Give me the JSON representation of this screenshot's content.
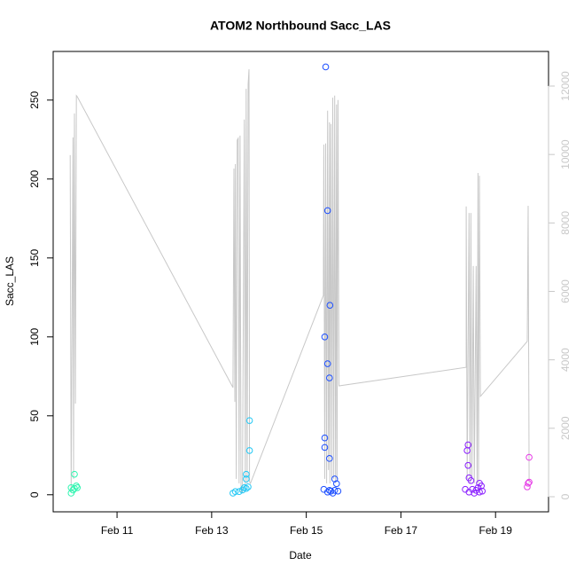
{
  "chart_data": {
    "type": "scatter",
    "title": "ATOM2 Northbound Sacc_LAS",
    "x_label": "Date",
    "y_label": "Sacc_LAS",
    "xlim": [
      9.65,
      20.12
    ],
    "xticks": [
      {
        "value": 11,
        "label": "Feb 11"
      },
      {
        "value": 13,
        "label": "Feb 13"
      },
      {
        "value": 15,
        "label": "Feb 15"
      },
      {
        "value": 17,
        "label": "Feb 17"
      },
      {
        "value": 19,
        "label": "Feb 19"
      }
    ],
    "ylim": [
      -10.8,
      280.8
    ],
    "yticks": [
      0,
      50,
      100,
      150,
      200,
      250
    ],
    "y2lim": [
      -441,
      13011
    ],
    "y2ticks": [
      0,
      2000,
      4000,
      6000,
      8000,
      10000,
      12000
    ],
    "y2_color": "#c8c8c8",
    "series": [
      {
        "color": "#2ef5b0",
        "x": [
          10.1,
          10.03,
          10.07,
          10.14,
          10.1,
          10.03,
          10.16
        ],
        "values": [
          13,
          4.5,
          3,
          5.6,
          4,
          1,
          4.5
        ]
      },
      {
        "color": "#22c8f5",
        "x": [
          13.45,
          13.5,
          13.58,
          13.65,
          13.69,
          13.73,
          13.77,
          13.73,
          13.73,
          13.8,
          13.8
        ],
        "values": [
          1,
          2,
          2,
          3,
          4.5,
          4,
          5,
          13,
          10,
          47,
          28
        ]
      },
      {
        "color": "#1e50ff",
        "x": [
          15.41,
          15.45,
          15.5,
          15.39,
          15.45,
          15.49,
          15.39,
          15.39,
          15.49,
          15.6,
          15.64,
          15.37,
          15.45,
          15.52,
          15.6,
          15.67,
          15.56,
          15.49
        ],
        "values": [
          271,
          180,
          120,
          100,
          83,
          74,
          36,
          30,
          23,
          10,
          7,
          3.4,
          1.7,
          2.3,
          2.8,
          2.3,
          1,
          2.8
        ]
      },
      {
        "color": "#8a1eff",
        "x": [
          18.4,
          18.42,
          18.42,
          18.44,
          18.48,
          18.51,
          18.63,
          18.66,
          18.7,
          18.36,
          18.44,
          18.55,
          18.59,
          18.66,
          18.72
        ],
        "values": [
          28,
          31.6,
          18.6,
          10.7,
          9,
          3.4,
          4.5,
          7.3,
          5.6,
          3.4,
          1.7,
          1,
          2.8,
          1.7,
          2.3
        ]
      },
      {
        "color": "#e63ce6",
        "x": [
          19.71,
          19.69,
          19.67,
          19.71
        ],
        "values": [
          23.7,
          7.3,
          5,
          8
        ]
      }
    ],
    "line": {
      "axis": "y2",
      "color": "#c8c8c8",
      "x": [
        10.01,
        10.03,
        10.07,
        10.08,
        10.1,
        10.12,
        10.14,
        10.16,
        13.45,
        13.47,
        13.49,
        13.5,
        13.52,
        13.54,
        13.56,
        13.58,
        13.6,
        13.62,
        13.65,
        13.69,
        13.71,
        13.73,
        13.75,
        13.77,
        13.79,
        13.8,
        13.82,
        15.36,
        15.37,
        15.39,
        15.41,
        15.43,
        15.45,
        15.47,
        15.49,
        15.5,
        15.52,
        15.54,
        15.56,
        15.58,
        15.6,
        15.62,
        15.64,
        15.65,
        15.67,
        15.69,
        18.38,
        18.38,
        18.4,
        18.44,
        18.46,
        18.48,
        18.5,
        18.53,
        18.55,
        18.59,
        18.61,
        18.63,
        18.64,
        18.66,
        18.68,
        19.67,
        19.69,
        19.71
      ],
      "values": [
        9980,
        130,
        10500,
        520,
        11200,
        2720,
        11720,
        11690,
        3190,
        9590,
        2770,
        9720,
        520,
        10420,
        10470,
        390,
        10550,
        130,
        130,
        11020,
        260,
        11920,
        390,
        12050,
        12490,
        440,
        390,
        5880,
        10290,
        520,
        10320,
        390,
        11280,
        780,
        10940,
        390,
        10890,
        520,
        11660,
        520,
        11720,
        390,
        11460,
        520,
        11590,
        3240,
        3780,
        8480,
        520,
        8290,
        390,
        8290,
        520,
        6740,
        390,
        6740,
        390,
        9460,
        390,
        9380,
        2930,
        4540,
        8500,
        390
      ]
    }
  }
}
